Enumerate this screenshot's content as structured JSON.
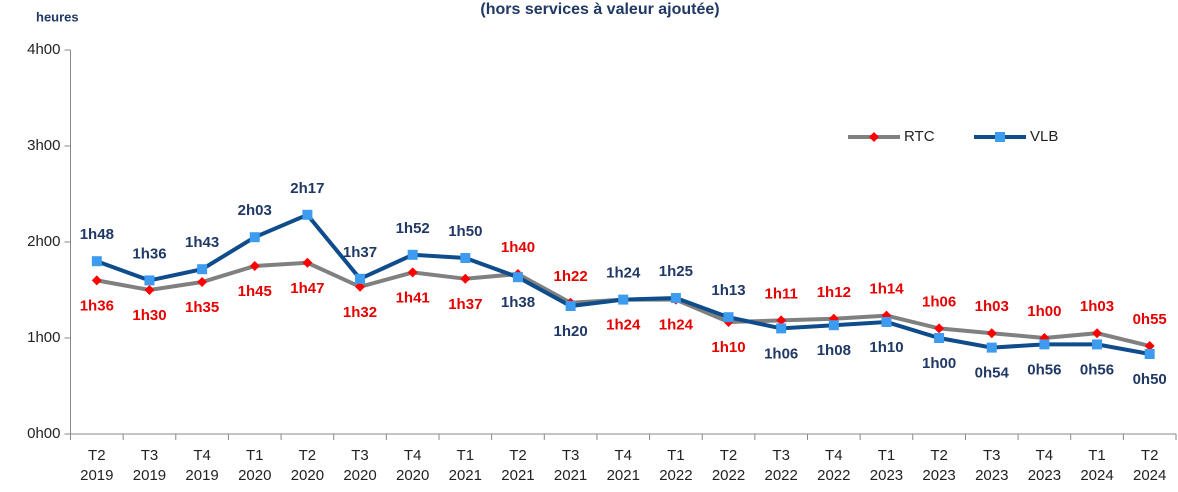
{
  "chart_data": {
    "type": "line",
    "subtitle": "(hors services à valeur ajoutée)",
    "y_label": "heures",
    "categories": [
      "T2 2019",
      "T3 2019",
      "T4 2019",
      "T1 2020",
      "T2 2020",
      "T3 2020",
      "T4 2020",
      "T1 2021",
      "T2 2021",
      "T3 2021",
      "T4 2021",
      "T1 2022",
      "T2 2022",
      "T3 2022",
      "T4 2022",
      "T1 2023",
      "T2 2023",
      "T3 2023",
      "T4 2023",
      "T1 2024",
      "T2 2024"
    ],
    "series": [
      {
        "name": "RTC",
        "color": "#808080",
        "marker_color": "#ff0000",
        "label_color": "#e60000",
        "values": [
          96,
          90,
          95,
          105,
          107,
          92,
          101,
          97,
          100,
          82,
          84,
          84,
          70,
          71,
          72,
          74,
          66,
          63,
          60,
          63,
          55
        ],
        "value_labels": [
          "1h36",
          "1h30",
          "1h35",
          "1h45",
          "1h47",
          "1h32",
          "1h41",
          "1h37",
          "1h40",
          "1h22",
          "1h24",
          "1h24",
          "1h10",
          "1h11",
          "1h12",
          "1h14",
          "1h06",
          "1h03",
          "1h00",
          "1h03",
          "0h55"
        ]
      },
      {
        "name": "VLB",
        "color": "#0f4c8c",
        "marker_color": "#3d9cf0",
        "label_color": "#1f3864",
        "values": [
          108,
          96,
          103,
          123,
          137,
          97,
          112,
          110,
          98,
          80,
          84,
          85,
          73,
          66,
          68,
          70,
          60,
          54,
          56,
          56,
          50
        ],
        "value_labels": [
          "1h48",
          "1h36",
          "1h43",
          "2h03",
          "2h17",
          "1h37",
          "1h52",
          "1h50",
          "1h38",
          "1h20",
          "1h24",
          "1h25",
          "1h13",
          "1h06",
          "1h08",
          "1h10",
          "1h00",
          "0h54",
          "0h56",
          "0h56",
          "0h50"
        ]
      }
    ],
    "ylim": [
      0,
      240
    ],
    "yticks": [
      {
        "value": 0,
        "label": "0h00"
      },
      {
        "value": 60,
        "label": "1h00"
      },
      {
        "value": 120,
        "label": "2h00"
      },
      {
        "value": 180,
        "label": "3h00"
      },
      {
        "value": 240,
        "label": "4h00"
      }
    ],
    "grid": false,
    "legend": "upper right"
  }
}
